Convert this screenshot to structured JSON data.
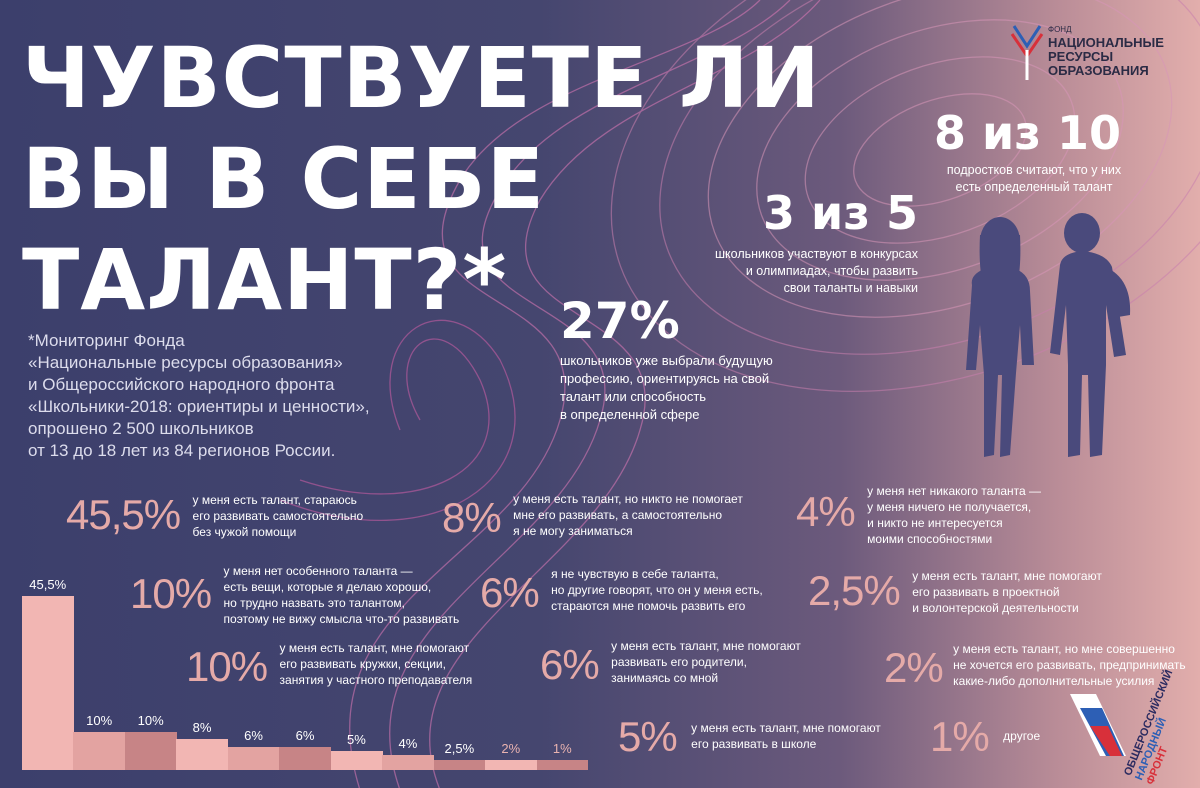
{
  "title": {
    "line1": "ЧУВСТВУЕТЕ ЛИ",
    "line2": "ВЫ В СЕБЕ",
    "line3": "ТАЛАНТ?*"
  },
  "footnote": {
    "lines": [
      "*Мониторинг Фонда",
      "«Национальные ресурсы образования»",
      "и Общероссийского народного фронта",
      "«Школьники-2018: ориентиры и ценности»,",
      "опрошено 2 500 школьников",
      "от 13 до 18 лет из 84 регионов России."
    ]
  },
  "logo": {
    "small": "ФОНД",
    "lines": [
      "НАЦИОНАЛЬНЫЕ",
      "РЕСУРСЫ",
      "ОБРАЗОВАНИЯ"
    ]
  },
  "highlights": {
    "h1": {
      "value": "8 из 10",
      "lines": [
        "подростков считают, что у них",
        "есть определенный талант"
      ]
    },
    "h2": {
      "value": "3 из 5",
      "lines": [
        "школьников участвуют в конкурсах",
        "и олимпиадах, чтобы развить",
        "свои таланты и навыки"
      ]
    },
    "h3": {
      "value": "27%",
      "lines": [
        "школьников уже выбрали будущую",
        "профессию, ориентируясь на свой",
        "талант или способность",
        "в определенной сфере"
      ]
    }
  },
  "stats": {
    "s1": {
      "pct": "45,5%",
      "lines": [
        "у меня есть талант, стараюсь",
        "его развивать самостоятельно",
        "без чужой помощи"
      ]
    },
    "s2": {
      "pct": "10%",
      "lines": [
        "у меня нет особенного таланта —",
        "есть вещи, которые я делаю хорошо,",
        "но трудно назвать это талантом,",
        "поэтому не вижу смысла что-то развивать"
      ]
    },
    "s3": {
      "pct": "10%",
      "lines": [
        "у меня есть талант, мне помогают",
        "его развивать кружки, секции,",
        "занятия у частного преподавателя"
      ]
    },
    "s4": {
      "pct": "8%",
      "lines": [
        "у меня есть талант, но никто не помогает",
        "мне его развивать, а самостоятельно",
        "я не могу заниматься"
      ]
    },
    "s5": {
      "pct": "6%",
      "lines": [
        "я не чувствую в себе таланта,",
        "но другие говорят, что он у меня есть,",
        "стараются мне помочь развить его"
      ]
    },
    "s6": {
      "pct": "6%",
      "lines": [
        "у меня есть талант, мне помогают",
        "развивать его родители,",
        "занимаясь со мной"
      ]
    },
    "s7": {
      "pct": "5%",
      "lines": [
        "у меня есть талант, мне помогают",
        "его развивать в школе"
      ]
    },
    "s8": {
      "pct": "4%",
      "lines": [
        "у меня нет никакого таланта —",
        "у меня ничего не получается,",
        "и никто не интересуется",
        "моими способностями"
      ]
    },
    "s9": {
      "pct": "2,5%",
      "lines": [
        "у меня есть талант, мне помогают",
        "его развивать в проектной",
        "и волонтерской деятельности"
      ]
    },
    "s10": {
      "pct": "2%",
      "lines": [
        "у меня есть талант, но мне совершенно",
        "не хочется его развивать, предпринимать",
        "какие-либо дополнительные усилия"
      ]
    },
    "s11": {
      "pct": "1%",
      "lines": [
        "другое"
      ]
    }
  },
  "chart_data": {
    "type": "bar",
    "categories": [
      "45,5%",
      "10%",
      "10%",
      "8%",
      "6%",
      "6%",
      "5%",
      "4%",
      "2,5%",
      "2%",
      "1%"
    ],
    "values": [
      45.5,
      10,
      10,
      8,
      6,
      6,
      5,
      4,
      2.5,
      2,
      1
    ],
    "labels": [
      "45,5%",
      "10%",
      "10%",
      "8%",
      "6%",
      "6%",
      "5%",
      "4%",
      "2,5%",
      "2%",
      "1%"
    ],
    "colors": [
      "#f2b6b3",
      "#e3a3a1",
      "#c78486",
      "#f2b6b3",
      "#e3a3a1",
      "#c78486",
      "#f2b6b3",
      "#e3a3a1",
      "#c78486",
      "#f2b6b3",
      "#c78486"
    ],
    "title": "",
    "xlabel": "",
    "ylabel": ""
  },
  "onf": {
    "lines": [
      "ОБЩЕРОССИЙСКИЙ",
      "НАРОДНЫЙ",
      "ФРОНТ"
    ]
  }
}
